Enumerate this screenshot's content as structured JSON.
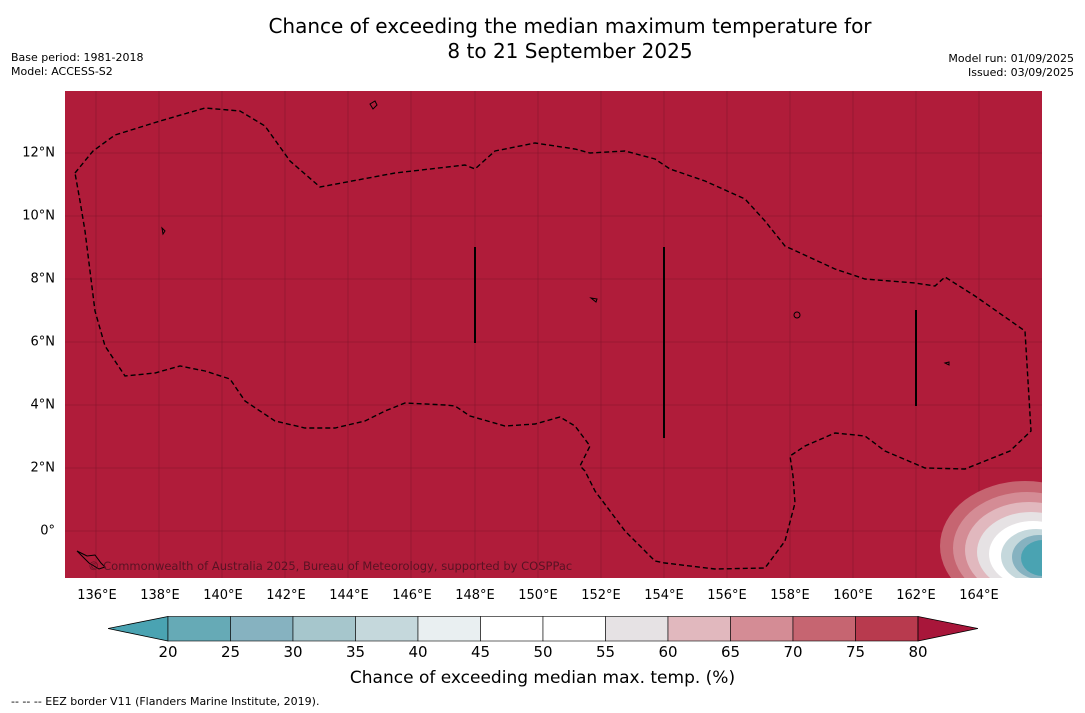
{
  "title": {
    "line1": "Chance of exceeding the median maximum temperature for",
    "line2": "8 to 21 September 2025"
  },
  "meta_left": {
    "base_period": "Base period: 1981-2018",
    "model": "Model: ACCESS-S2"
  },
  "meta_right": {
    "model_run": "Model run: 01/09/2025",
    "issued": "Issued: 03/09/2025"
  },
  "map": {
    "background_color": "#b01c3a",
    "copyright": "© Commonwealth of Australia 2025, Bureau of Meteorology, supported by COSPPac",
    "lon_labels": [
      "136°E",
      "138°E",
      "140°E",
      "142°E",
      "144°E",
      "146°E",
      "148°E",
      "150°E",
      "152°E",
      "154°E",
      "156°E",
      "158°E",
      "160°E",
      "162°E",
      "164°E"
    ],
    "lat_labels": [
      "12°N",
      "10°N",
      "8°N",
      "6°N",
      "4°N",
      "2°N",
      "0°"
    ]
  },
  "colorbar": {
    "ticks": [
      "20",
      "25",
      "30",
      "35",
      "40",
      "45",
      "50",
      "55",
      "60",
      "65",
      "70",
      "75",
      "80"
    ],
    "colors": [
      "#66aab6",
      "#86b2c0",
      "#a6c6cc",
      "#c5d8dc",
      "#e9eff1",
      "#ffffff",
      "#ffffff",
      "#e6e2e4",
      "#e1b8be",
      "#d48c95",
      "#c66571",
      "#b83a4e"
    ],
    "under_color": "#4aa3b2",
    "over_color": "#a8163a",
    "label": "Chance of exceeding median max. temp. (%)"
  },
  "footnote": "-- -- -- EEZ border V11 (Flanders Marine Institute, 2019)."
}
